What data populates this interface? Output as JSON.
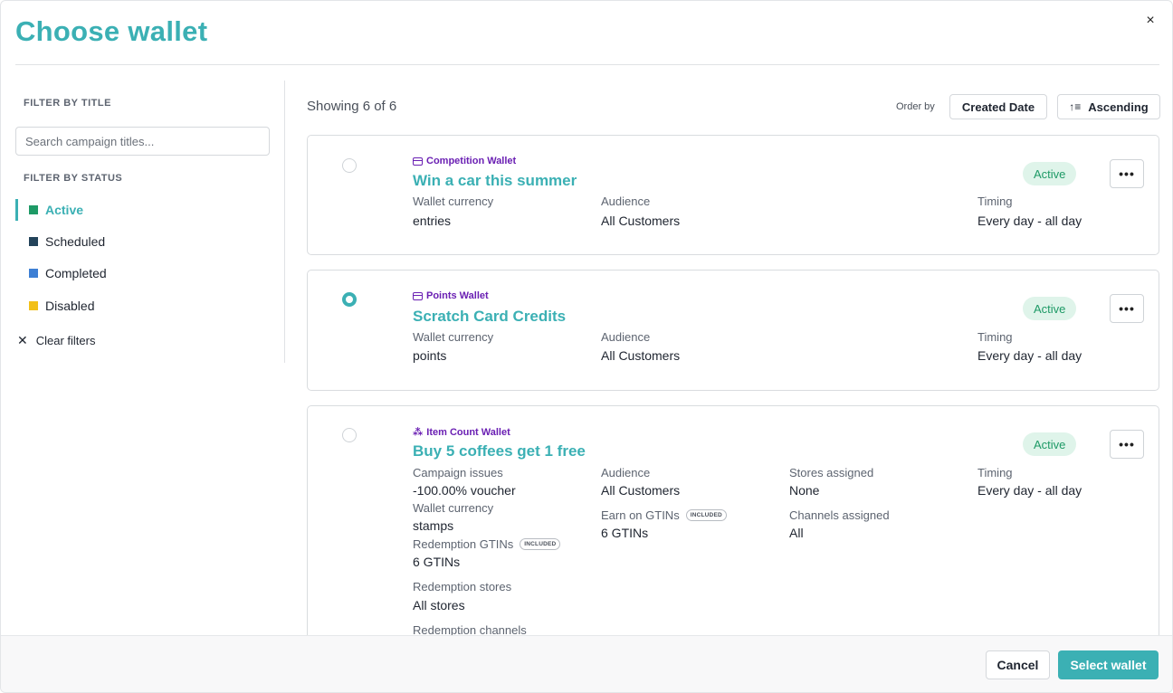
{
  "modal": {
    "title": "Choose wallet",
    "close_icon": "×"
  },
  "sidebar": {
    "filter_title_heading": "FILTER BY TITLE",
    "search_placeholder": "Search campaign titles...",
    "filter_status_heading": "FILTER BY STATUS",
    "statuses": [
      {
        "label": "Active",
        "color": "#1e9a66",
        "selected": true
      },
      {
        "label": "Scheduled",
        "color": "#23435a",
        "selected": false
      },
      {
        "label": "Completed",
        "color": "#3d7fd4",
        "selected": false
      },
      {
        "label": "Disabled",
        "color": "#f2c019",
        "selected": false
      }
    ],
    "clear_filters": "Clear filters"
  },
  "toolbar": {
    "showing": "Showing 6 of 6",
    "order_by_label": "Order by",
    "order_field": "Created Date",
    "order_direction": "Ascending"
  },
  "cards": [
    {
      "type": "Competition Wallet",
      "name": "Win a car this summer",
      "status": "Active",
      "selected": false,
      "wallet_currency_label": "Wallet currency",
      "wallet_currency": "entries",
      "audience_label": "Audience",
      "audience": "All Customers",
      "timing_label": "Timing",
      "timing": "Every day - all day"
    },
    {
      "type": "Points Wallet",
      "name": "Scratch Card Credits",
      "status": "Active",
      "selected": true,
      "wallet_currency_label": "Wallet currency",
      "wallet_currency": "points",
      "audience_label": "Audience",
      "audience": "All Customers",
      "timing_label": "Timing",
      "timing": "Every day - all day"
    },
    {
      "type": "Item Count Wallet",
      "name": "Buy 5 coffees get 1 free",
      "status": "Active",
      "selected": false,
      "campaign_issues_label": "Campaign issues",
      "campaign_issues": "-100.00% voucher",
      "wallet_currency_label": "Wallet currency",
      "wallet_currency": "stamps",
      "redemption_gtins_label": "Redemption GTINs",
      "redemption_gtins": "6 GTINs",
      "redemption_stores_label": "Redemption stores",
      "redemption_stores": "All stores",
      "redemption_channels_label": "Redemption channels",
      "audience_label": "Audience",
      "audience": "All Customers",
      "earn_gtins_label": "Earn on GTINs",
      "earn_gtins": "6 GTINs",
      "stores_label": "Stores assigned",
      "stores": "None",
      "channels_label": "Channels assigned",
      "channels": "All",
      "timing_label": "Timing",
      "timing": "Every day - all day",
      "included_tag": "INCLUDED"
    }
  ],
  "footer": {
    "cancel": "Cancel",
    "select": "Select wallet"
  },
  "accent_color": "#3bb0b4"
}
